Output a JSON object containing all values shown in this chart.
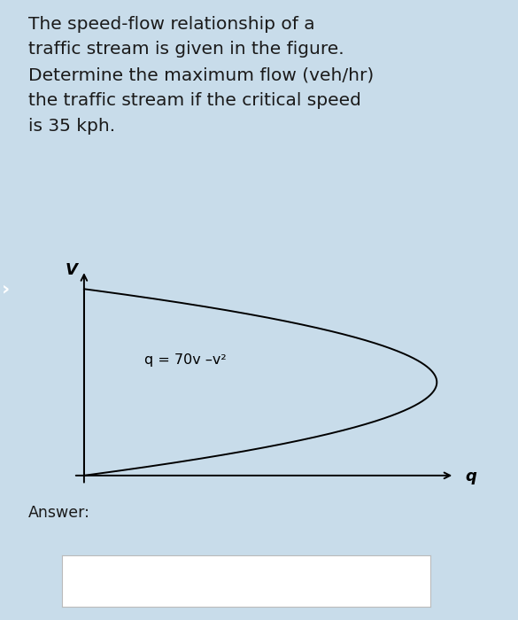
{
  "title_text": "The speed-flow relationship of a\ntraffic stream is given in the figure.\nDetermine the maximum flow (veh/hr)\nthe traffic stream if the critical speed\nis 35 kph.",
  "equation_label": "q = 70v –v²",
  "x_axis_label": "q",
  "y_axis_label": "V",
  "answer_label": "Answer:",
  "bg_color": "#c8dcea",
  "plot_bg_color": "#ffffff",
  "text_color": "#1a1a1a",
  "v_max": 70,
  "answer_box_color": "#ffffff",
  "sidebar_color": "#3a3a3a",
  "title_fontsize": 14.5,
  "eq_fontsize": 11.5,
  "axis_label_fontsize": 13
}
